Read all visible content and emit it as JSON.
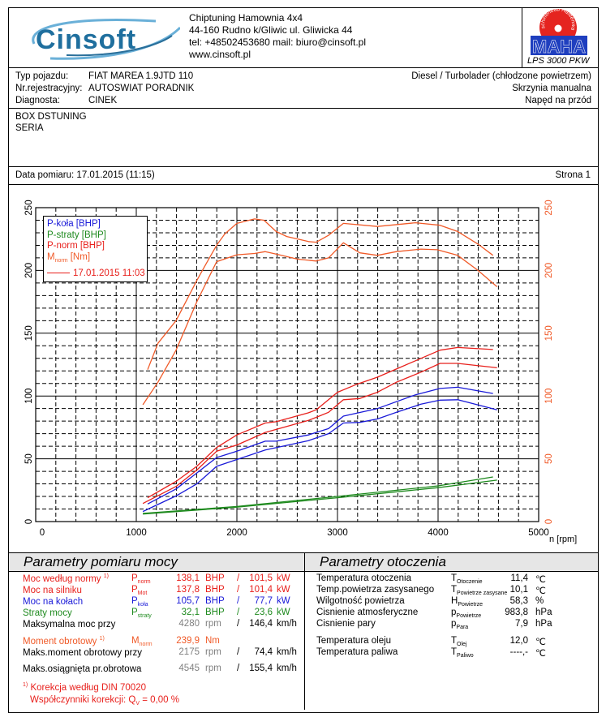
{
  "header": {
    "company": "Chiptuning Hamownia 4x4",
    "address": "44-160 Rudno k/Gliwic ul. Gliwicka 44",
    "contact": "tel: +48502453680 mail: biuro@cinsoft.pl",
    "website": "www.cinsoft.pl",
    "logo_text": "Cinsoft",
    "maha_logo_text": "MAHA",
    "maha_ring_text": "Maschinenbau Haldenwang",
    "maha_model": "LPS 3000 PKW"
  },
  "vehicle": {
    "type_label": "Typ pojazdu:",
    "type_value": "FIAT MAREA 1.9JTD 110",
    "reg_label": "Nr.rejestracyjny:",
    "reg_value": "AUTOSWIAT PORADNIK",
    "diag_label": "Diagnosta:",
    "diag_value": "CINEK",
    "engine": "Diesel / Turbolader (chłodzone powietrzem)",
    "gearbox": "Skrzynia manualna",
    "drive": "Napęd na przód"
  },
  "notes": [
    "BOX DSTUNING",
    "SERIA"
  ],
  "date_row": {
    "date": "Data pomiaru: 17.01.2015 (11:15)",
    "page": "Strona 1"
  },
  "colors": {
    "p_kola": "#1a1ad8",
    "p_straty": "#1e8a1e",
    "p_norm": "#e8201c",
    "m_norm": "#f05a28",
    "grid": "#000000"
  },
  "chart_data": {
    "type": "line",
    "xlabel": "n [rpm]",
    "xlim": [
      0,
      5000
    ],
    "ylim_left": [
      0,
      250
    ],
    "ylim_right": [
      0,
      250
    ],
    "x_ticks": [
      "0",
      "1000",
      "2000",
      "3000",
      "4000",
      "5000"
    ],
    "y_ticks_left": [
      "0",
      "50",
      "100",
      "150",
      "200",
      "250"
    ],
    "y_ticks_right": [
      "0",
      "50",
      "100",
      "150",
      "200",
      "250"
    ],
    "grid": true,
    "legend_position": "top-left",
    "legend": {
      "items": [
        "P-koła [BHP]",
        "P-straty [BHP]",
        "P-norm [BHP]"
      ],
      "m_norm_main": "M",
      "m_norm_sub": "norm",
      "m_norm_unit": " [Nm]",
      "run": "17.01.2015 11:03"
    },
    "series": [
      {
        "name": "M_norm [Nm]",
        "color_key": "m_norm",
        "curves": [
          [
            [
              1113,
              121
            ],
            [
              1215,
              142
            ],
            [
              1395,
              160
            ],
            [
              1602,
              192
            ],
            [
              1664,
              201
            ],
            [
              1798,
              220
            ],
            [
              1879,
              229
            ],
            [
              2000,
              237.5
            ],
            [
              2175,
              241
            ],
            [
              2269,
              240
            ],
            [
              2390,
              231
            ],
            [
              2497,
              227
            ],
            [
              2712,
              223
            ],
            [
              2789,
              222.5
            ],
            [
              2911,
              228
            ],
            [
              3059,
              237.5
            ],
            [
              3397,
              235
            ],
            [
              3776,
              238
            ],
            [
              4019,
              236
            ],
            [
              4195,
              231
            ],
            [
              4397,
              221
            ],
            [
              4546,
              212
            ]
          ],
          [
            [
              1065,
              93
            ],
            [
              1215,
              111
            ],
            [
              1395,
              136.5
            ],
            [
              1602,
              175
            ],
            [
              1798,
              207
            ],
            [
              2000,
              212.5
            ],
            [
              2175,
              213.5
            ],
            [
              2282,
              215
            ],
            [
              2390,
              213
            ],
            [
              2605,
              209
            ],
            [
              2789,
              207.5
            ],
            [
              2911,
              210
            ],
            [
              3059,
              222
            ],
            [
              3222,
              214
            ],
            [
              3397,
              212
            ],
            [
              3586,
              215
            ],
            [
              3830,
              217
            ],
            [
              3992,
              216.5
            ],
            [
              4195,
              212
            ],
            [
              4397,
              200
            ],
            [
              4586,
              187
            ]
          ]
        ]
      },
      {
        "name": "P-norm [BHP]",
        "color_key": "p_norm",
        "curves": [
          [
            [
              1113,
              19
            ],
            [
              1395,
              32
            ],
            [
              1602,
              44
            ],
            [
              1798,
              59
            ],
            [
              2000,
              69
            ],
            [
              2282,
              78.5
            ],
            [
              2390,
              79.5
            ],
            [
              2712,
              86.6
            ],
            [
              2789,
              89
            ],
            [
              3000,
              103
            ],
            [
              3181,
              109
            ],
            [
              3397,
              115
            ],
            [
              3586,
              121.5
            ],
            [
              3830,
              130
            ],
            [
              4019,
              136.5
            ],
            [
              4195,
              138.6
            ],
            [
              4546,
              137
            ]
          ],
          [
            [
              1065,
              14.4
            ],
            [
              1395,
              28
            ],
            [
              1602,
              41
            ],
            [
              1798,
              56
            ],
            [
              2000,
              61
            ],
            [
              2282,
              71
            ],
            [
              2712,
              80.6
            ],
            [
              2789,
              83
            ],
            [
              2911,
              87
            ],
            [
              3059,
              97
            ],
            [
              3222,
              98
            ],
            [
              3397,
              103
            ],
            [
              3586,
              111
            ],
            [
              3830,
              119
            ],
            [
              4019,
              126
            ],
            [
              4195,
              126
            ],
            [
              4586,
              122.5
            ]
          ]
        ]
      },
      {
        "name": "P-koła [BHP]",
        "color_key": "p_kola",
        "curves": [
          [
            [
              1113,
              14
            ],
            [
              1395,
              26
            ],
            [
              1602,
              38.7
            ],
            [
              1798,
              51
            ],
            [
              2000,
              56
            ],
            [
              2282,
              64
            ],
            [
              2390,
              64
            ],
            [
              2712,
              69
            ],
            [
              2789,
              71
            ],
            [
              2911,
              74
            ],
            [
              3059,
              84
            ],
            [
              3397,
              90
            ],
            [
              3776,
              101
            ],
            [
              4019,
              106
            ],
            [
              4195,
              107
            ],
            [
              4546,
              102
            ]
          ],
          [
            [
              1065,
              8
            ],
            [
              1395,
              20.4
            ],
            [
              1602,
              30
            ],
            [
              1798,
              44
            ],
            [
              2000,
              49.4
            ],
            [
              2282,
              57
            ],
            [
              2712,
              64.5
            ],
            [
              2789,
              66.6
            ],
            [
              2911,
              70
            ],
            [
              3059,
              78.5
            ],
            [
              3222,
              79
            ],
            [
              3397,
              81.7
            ],
            [
              3586,
              87
            ],
            [
              3830,
              93.5
            ],
            [
              4019,
              96.7
            ],
            [
              4195,
              97
            ],
            [
              4586,
              89
            ]
          ]
        ]
      },
      {
        "name": "P-straty [BHP]",
        "color_key": "p_straty",
        "curves": [
          [
            [
              1065,
              6.5
            ],
            [
              2000,
              12
            ],
            [
              3000,
              20
            ],
            [
              4000,
              28.4
            ],
            [
              4546,
              35.5
            ]
          ],
          [
            [
              1065,
              6
            ],
            [
              2000,
              11.5
            ],
            [
              3000,
              19
            ],
            [
              4000,
              27
            ],
            [
              4586,
              33
            ]
          ]
        ]
      }
    ]
  },
  "power": {
    "title": "Parametry pomiaru mocy",
    "rows": [
      {
        "label": "Moc według normy",
        "note": "1)",
        "sym": "P",
        "sub": "norm",
        "val": "138,1",
        "unit": "BHP",
        "slash": "/",
        "val2": "101,5",
        "unit2": "kW",
        "color": "#e8201c"
      },
      {
        "label": "Moc na silniku",
        "note": "",
        "sym": "P",
        "sub": "Mot",
        "val": "137,8",
        "unit": "BHP",
        "slash": "/",
        "val2": "101,4",
        "unit2": "kW",
        "color": "#e8201c"
      },
      {
        "label": "Moc na kołach",
        "note": "",
        "sym": "P",
        "sub": "koła",
        "val": "105,7",
        "unit": "BHP",
        "slash": "/",
        "val2": "77,7",
        "unit2": "kW",
        "color": "#1a1ad8"
      },
      {
        "label": "Straty mocy",
        "note": "",
        "sym": "P",
        "sub": "straty",
        "val": "32,1",
        "unit": "BHP",
        "slash": "/",
        "val2": "23,6",
        "unit2": "kW",
        "color": "#1e8a1e"
      },
      {
        "label": "Maksymalna moc przy",
        "note": "",
        "sym": "",
        "sub": "",
        "val": "4280",
        "unit": "rpm",
        "slash": "/",
        "val2": "146,4",
        "unit2": "km/h",
        "color": "#000"
      },
      {
        "label": "Moment obrotowy",
        "note": "1)",
        "sym": "M",
        "sub": "norm",
        "val": "239,9",
        "unit": "Nm",
        "slash": "",
        "val2": "",
        "unit2": "",
        "color": "#f05a28"
      },
      {
        "label": "Maks.moment obrotowy przy",
        "note": "",
        "sym": "",
        "sub": "",
        "val": "2175",
        "unit": "rpm",
        "slash": "/",
        "val2": "74,4",
        "unit2": "km/h",
        "color": "#000"
      },
      {
        "label": "Maks.osiągnięta pr.obrotowa",
        "note": "",
        "sym": "",
        "sub": "",
        "val": "4545",
        "unit": "rpm",
        "slash": "/",
        "val2": "155,4",
        "unit2": "km/h",
        "color": "#000"
      }
    ],
    "footnote_mark": "1)",
    "footnote": "Korekcja według DIN 70020",
    "coef_label": "Współczynniki korekcji: Q",
    "coef_sub": "V",
    "coef_value": "=   0,00 %"
  },
  "env": {
    "title": "Parametry otoczenia",
    "rows": [
      {
        "label": "Temperatura otoczenia",
        "sym": "T",
        "sub": "Otoczenie",
        "val": "11,4",
        "unit": "℃"
      },
      {
        "label": "Temp.powietrza zasysanego",
        "sym": "T",
        "sub": "Powietrze zasysane",
        "val": "10,1",
        "unit": "℃"
      },
      {
        "label": "Wilgotność powietrza",
        "sym": "H",
        "sub": "Powietrze",
        "val": "58,3",
        "unit": "%"
      },
      {
        "label": "Cisnienie atmosferyczne",
        "sym": "p",
        "sub": "Powietrze",
        "val": "983,8",
        "unit": "hPa"
      },
      {
        "label": "Cisnienie pary",
        "sym": "p",
        "sub": "Para",
        "val": "7,9",
        "unit": "hPa"
      },
      {
        "label": "Temperatura oleju",
        "sym": "T",
        "sub": "Olej",
        "val": "12,0",
        "unit": "℃"
      },
      {
        "label": "Temperatura paliwa",
        "sym": "T",
        "sub": "Paliwo",
        "val": "----,-",
        "unit": "℃"
      }
    ]
  }
}
